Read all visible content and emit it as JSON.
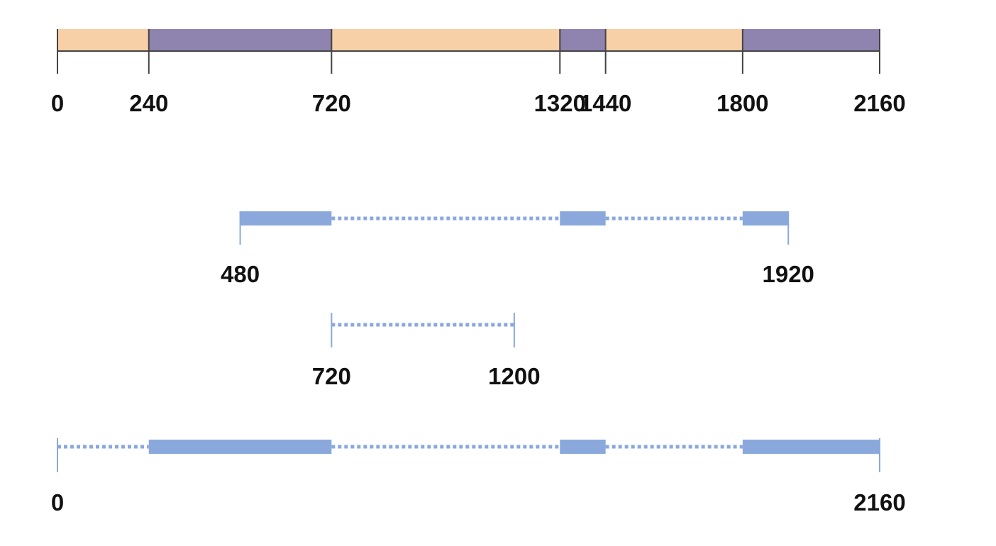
{
  "colors": {
    "timeline_a": "#f7d0a8",
    "timeline_b": "#8f83b0",
    "timeline_tick": "#444444",
    "interval": "#8aa8dc",
    "label": "#111111"
  },
  "timeline": {
    "range": [
      0,
      2160
    ],
    "segments": [
      {
        "from": 0,
        "to": 240,
        "color_key": "timeline_a"
      },
      {
        "from": 240,
        "to": 720,
        "color_key": "timeline_b"
      },
      {
        "from": 720,
        "to": 1320,
        "color_key": "timeline_a"
      },
      {
        "from": 1320,
        "to": 1440,
        "color_key": "timeline_b"
      },
      {
        "from": 1440,
        "to": 1800,
        "color_key": "timeline_a"
      },
      {
        "from": 1800,
        "to": 2160,
        "color_key": "timeline_b"
      }
    ],
    "ticks": [
      "0",
      "240",
      "720",
      "1320",
      "1440",
      "1800",
      "2160"
    ]
  },
  "intervals": [
    {
      "id": "interval-480-1920",
      "start": 480,
      "end": 1920,
      "solid": [
        [
          480,
          720
        ],
        [
          1320,
          1440
        ],
        [
          1800,
          1920
        ]
      ],
      "dotted": [
        [
          720,
          1320
        ],
        [
          1440,
          1800
        ]
      ],
      "labels": [
        "480",
        "1920"
      ]
    },
    {
      "id": "interval-720-1200",
      "start": 720,
      "end": 1200,
      "solid": [],
      "dotted": [
        [
          720,
          1200
        ]
      ],
      "labels": [
        "720",
        "1200"
      ]
    },
    {
      "id": "interval-0-2160",
      "start": 0,
      "end": 2160,
      "solid": [
        [
          240,
          720
        ],
        [
          1320,
          1440
        ],
        [
          1800,
          2160
        ]
      ],
      "dotted": [
        [
          0,
          240
        ],
        [
          720,
          1320
        ],
        [
          1440,
          1800
        ]
      ],
      "labels": [
        "0",
        "2160"
      ]
    }
  ]
}
